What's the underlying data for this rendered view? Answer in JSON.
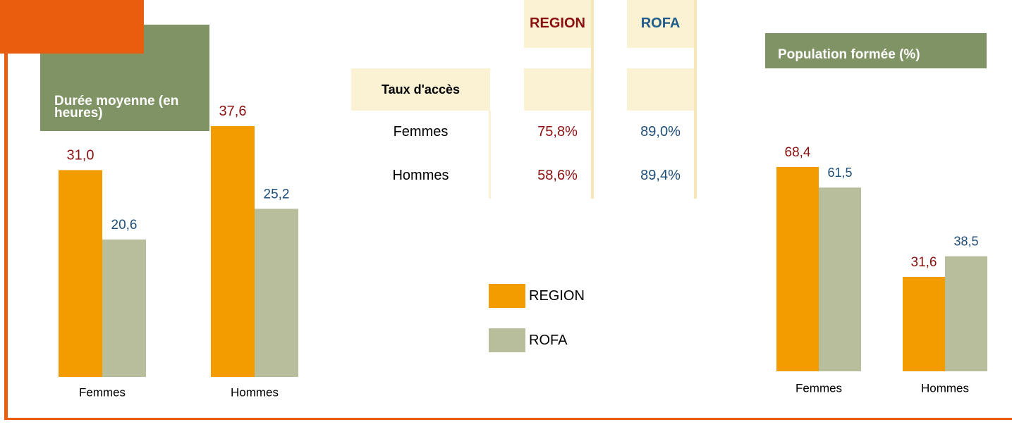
{
  "chart_data": [
    {
      "type": "bar",
      "title": "Durée moyenne (en heures)",
      "categories": [
        "Femmes",
        "Hommes"
      ],
      "series": [
        {
          "name": "REGION",
          "color": "#f39c00",
          "label_color": "#8b1010",
          "values": [
            31.0,
            37.6
          ],
          "value_labels": [
            "31,0",
            "37,6"
          ]
        },
        {
          "name": "ROFA",
          "color": "#b8bd9b",
          "label_color": "#1f4e79",
          "values": [
            20.6,
            25.2
          ],
          "value_labels": [
            "20,6",
            "25,2"
          ]
        }
      ]
    },
    {
      "type": "bar",
      "title": "Population formée (%)",
      "categories": [
        "Femmes",
        "Hommes"
      ],
      "series": [
        {
          "name": "REGION",
          "color": "#f39c00",
          "label_color": "#8b1010",
          "values": [
            68.4,
            31.6
          ],
          "value_labels": [
            "68,4",
            "31,6"
          ]
        },
        {
          "name": "ROFA",
          "color": "#b8bd9b",
          "label_color": "#1f4e79",
          "values": [
            61.5,
            38.5
          ],
          "value_labels": [
            "61,5",
            "38,5"
          ]
        }
      ]
    }
  ],
  "table": {
    "columns": [
      "REGION",
      "ROFA"
    ],
    "row_header": "Taux d'accès",
    "rows": [
      [
        "Femmes",
        "75,8%",
        "89,0%"
      ],
      [
        "Hommes",
        "58,6%",
        "89,4%"
      ]
    ]
  }
}
